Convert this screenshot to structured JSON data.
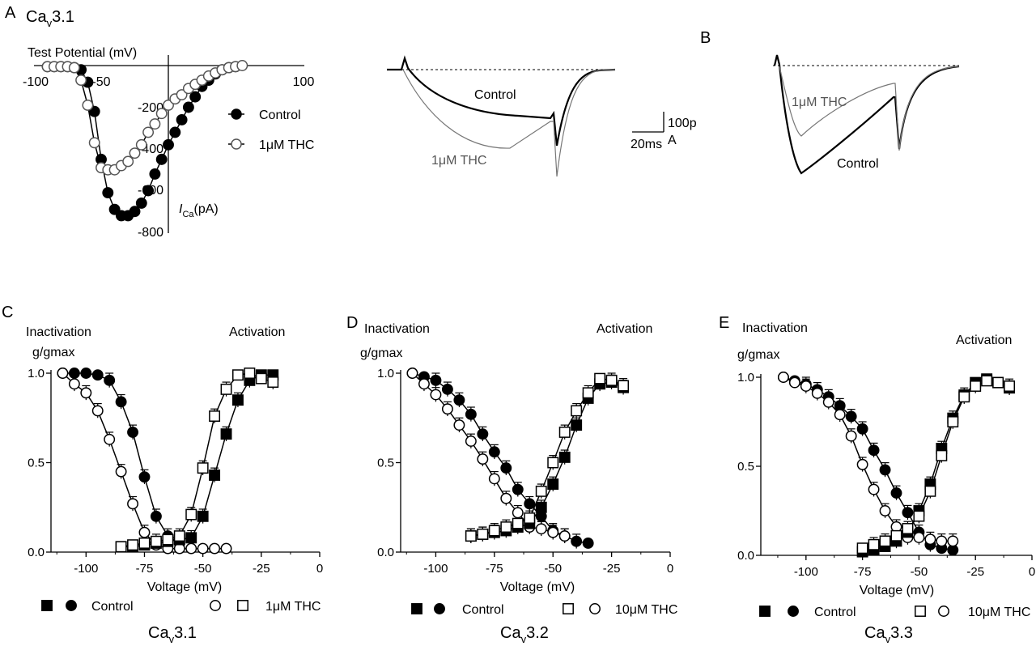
{
  "panels": {
    "a_letter": "A",
    "b_letter": "B",
    "c_letter": "C",
    "d_letter": "D",
    "e_letter": "E",
    "a_title_ca": "Ca",
    "a_title_sub": "v",
    "a_title_rest": "3.1"
  },
  "colors": {
    "control": "#000000",
    "thc": "#ffffff",
    "thc_trace": "#777777",
    "axis": "#000000"
  },
  "chart_data": [
    {
      "id": "A-IV",
      "type": "scatter",
      "xlabel": "Test Potential (mV)",
      "ylabel_italic": "I",
      "ylabel_sub": "Ca",
      "ylabel_rest": "(pA)",
      "x_ticks": [
        "-100",
        "-50",
        "100"
      ],
      "y_ticks": [
        "-200",
        "-400",
        "-600",
        "-800"
      ],
      "xlim": [
        -100,
        100
      ],
      "ylim": [
        -800,
        0
      ],
      "series": [
        {
          "name": "Control",
          "marker": "filled-circle",
          "x": [
            -90,
            -85,
            -80,
            -75,
            -70,
            -65,
            -60,
            -55,
            -50,
            -45,
            -40,
            -35,
            -30,
            -25,
            -20,
            -15,
            -10,
            -5,
            0,
            5,
            10,
            15,
            20,
            25,
            30,
            35,
            40,
            45,
            50
          ],
          "y": [
            -5,
            -5,
            -5,
            -5,
            -10,
            -20,
            -80,
            -220,
            -450,
            -610,
            -690,
            -720,
            -720,
            -700,
            -660,
            -600,
            -520,
            -450,
            -380,
            -320,
            -260,
            -200,
            -150,
            -100,
            -70,
            -40,
            -20,
            -10,
            -5
          ]
        },
        {
          "name": "1μM THC",
          "marker": "open-circle",
          "x": [
            -90,
            -85,
            -80,
            -75,
            -70,
            -65,
            -60,
            -55,
            -50,
            -45,
            -40,
            -35,
            -30,
            -25,
            -20,
            -15,
            -10,
            -5,
            0,
            5,
            10,
            15,
            20,
            25,
            30,
            35,
            40,
            45,
            50,
            55
          ],
          "y": [
            -5,
            -5,
            -5,
            -5,
            -10,
            -70,
            -190,
            -370,
            -490,
            -500,
            -500,
            -480,
            -460,
            -420,
            -380,
            -320,
            -280,
            -230,
            -190,
            -160,
            -140,
            -110,
            -90,
            -70,
            -50,
            -35,
            -20,
            -10,
            -5,
            0
          ]
        }
      ]
    },
    {
      "id": "C",
      "type": "scatter",
      "caption_ca": "Ca",
      "caption_sub": "v",
      "caption_rest": "3.1",
      "label_left": "Inactivation",
      "label_right": "Activation",
      "ylabel": "g/gmax",
      "xlabel": "Voltage (mV)",
      "x_ticks": [
        "-100",
        "-75",
        "-50",
        "-25",
        "0"
      ],
      "y_ticks": [
        "0.0",
        "0.5",
        "1.0"
      ],
      "xlim": [
        -115,
        0
      ],
      "ylim": [
        0,
        1
      ],
      "legend_control": "Control",
      "legend_thc": "1μM THC",
      "series": [
        {
          "name": "Control",
          "marker": "filled-circle",
          "x": [
            -110,
            -105,
            -100,
            -95,
            -90,
            -85,
            -80,
            -75,
            -70,
            -65,
            -60
          ],
          "y": [
            1.0,
            1.0,
            1.0,
            0.99,
            0.96,
            0.84,
            0.67,
            0.42,
            0.2,
            0.09,
            0.05
          ]
        },
        {
          "name": "1μM THC",
          "marker": "open-circle",
          "x": [
            -110,
            -105,
            -100,
            -95,
            -90,
            -85,
            -80,
            -75,
            -70,
            -65,
            -60,
            -55,
            -50,
            -45,
            -40
          ],
          "y": [
            1.0,
            0.94,
            0.89,
            0.79,
            0.63,
            0.45,
            0.27,
            0.11,
            0.04,
            0.02,
            0.02,
            0.02,
            0.02,
            0.02,
            0.02
          ]
        },
        {
          "name": "Control",
          "marker": "filled-square",
          "x": [
            -85,
            -80,
            -75,
            -70,
            -65,
            -60,
            -55,
            -50,
            -45,
            -40,
            -35,
            -30,
            -25,
            -20
          ],
          "y": [
            0.03,
            0.03,
            0.04,
            0.05,
            0.06,
            0.07,
            0.08,
            0.2,
            0.43,
            0.66,
            0.85,
            0.96,
            0.99,
            0.99
          ]
        },
        {
          "name": "1μM THC",
          "marker": "open-square",
          "x": [
            -85,
            -80,
            -75,
            -70,
            -65,
            -60,
            -55,
            -50,
            -45,
            -40,
            -35,
            -30,
            -25,
            -20
          ],
          "y": [
            0.03,
            0.04,
            0.05,
            0.06,
            0.07,
            0.09,
            0.21,
            0.47,
            0.76,
            0.91,
            0.99,
            1.0,
            0.97,
            0.95
          ]
        }
      ]
    },
    {
      "id": "D",
      "type": "scatter",
      "caption_ca": "Ca",
      "caption_sub": "v",
      "caption_rest": "3.2",
      "label_left": "Inactivation",
      "label_right": "Activation",
      "ylabel": "g/gmax",
      "xlabel": "Voltage (mV)",
      "x_ticks": [
        "-100",
        "-75",
        "-50",
        "-25",
        "0"
      ],
      "y_ticks": [
        "0.0",
        "0.5",
        "1.0"
      ],
      "xlim": [
        -115,
        0
      ],
      "ylim": [
        0,
        1
      ],
      "legend_control": "Control",
      "legend_thc": "10μM THC",
      "series": [
        {
          "name": "Control",
          "marker": "filled-circle",
          "x": [
            -110,
            -105,
            -100,
            -95,
            -90,
            -85,
            -80,
            -75,
            -70,
            -65,
            -60,
            -55,
            -50,
            -45,
            -40,
            -35
          ],
          "y": [
            1.0,
            0.98,
            0.96,
            0.91,
            0.85,
            0.77,
            0.66,
            0.56,
            0.47,
            0.35,
            0.27,
            0.2,
            0.12,
            0.09,
            0.06,
            0.05
          ]
        },
        {
          "name": "10μM THC",
          "marker": "open-circle",
          "x": [
            -110,
            -105,
            -100,
            -95,
            -90,
            -85,
            -80,
            -75,
            -70,
            -65,
            -60,
            -55,
            -50,
            -45
          ],
          "y": [
            1.0,
            0.94,
            0.88,
            0.8,
            0.71,
            0.62,
            0.52,
            0.41,
            0.3,
            0.22,
            0.14,
            0.13,
            0.11,
            0.09
          ]
        },
        {
          "name": "Control",
          "marker": "filled-square",
          "x": [
            -85,
            -80,
            -75,
            -70,
            -65,
            -60,
            -55,
            -50,
            -45,
            -40,
            -35,
            -30,
            -25,
            -20
          ],
          "y": [
            0.09,
            0.1,
            0.11,
            0.12,
            0.14,
            0.16,
            0.25,
            0.38,
            0.53,
            0.71,
            0.86,
            0.94,
            0.95,
            0.92
          ]
        },
        {
          "name": "10μM THC",
          "marker": "open-square",
          "x": [
            -85,
            -80,
            -75,
            -70,
            -65,
            -60,
            -55,
            -50,
            -45,
            -40,
            -35,
            -30,
            -25,
            -20
          ],
          "y": [
            0.09,
            0.1,
            0.12,
            0.14,
            0.16,
            0.19,
            0.34,
            0.5,
            0.67,
            0.79,
            0.89,
            0.97,
            0.96,
            0.93
          ]
        }
      ]
    },
    {
      "id": "E",
      "type": "scatter",
      "caption_ca": "Ca",
      "caption_sub": "v",
      "caption_rest": "3.3",
      "label_left": "Inactivation",
      "label_right": "Activation",
      "ylabel": "g/gmax",
      "xlabel": "Voltage (mV)",
      "x_ticks": [
        "-100",
        "-75",
        "-50",
        "-25",
        "0"
      ],
      "y_ticks": [
        "0.0",
        "0.5",
        "1.0"
      ],
      "xlim": [
        -120,
        0
      ],
      "ylim": [
        0,
        1
      ],
      "legend_control": "Control",
      "legend_thc": "10μM THC",
      "series": [
        {
          "name": "Control",
          "marker": "filled-circle",
          "x": [
            -110,
            -105,
            -100,
            -95,
            -90,
            -85,
            -80,
            -75,
            -70,
            -65,
            -60,
            -55,
            -50,
            -45,
            -40,
            -35
          ],
          "y": [
            1.0,
            0.98,
            0.96,
            0.93,
            0.89,
            0.84,
            0.78,
            0.71,
            0.59,
            0.48,
            0.35,
            0.24,
            0.13,
            0.06,
            0.04,
            0.03
          ]
        },
        {
          "name": "10μM THC",
          "marker": "open-circle",
          "x": [
            -110,
            -105,
            -100,
            -95,
            -90,
            -85,
            -80,
            -75,
            -70,
            -65,
            -60,
            -55,
            -50,
            -45,
            -40,
            -35
          ],
          "y": [
            1.0,
            0.97,
            0.95,
            0.91,
            0.86,
            0.79,
            0.67,
            0.51,
            0.37,
            0.25,
            0.16,
            0.1,
            0.1,
            0.09,
            0.08,
            0.08
          ]
        },
        {
          "name": "Control",
          "marker": "filled-square",
          "x": [
            -75,
            -70,
            -65,
            -60,
            -55,
            -50,
            -45,
            -40,
            -35,
            -30,
            -25,
            -20,
            -15,
            -10
          ],
          "y": [
            0.02,
            0.03,
            0.05,
            0.08,
            0.13,
            0.25,
            0.4,
            0.6,
            0.77,
            0.9,
            0.97,
            0.99,
            0.97,
            0.94
          ]
        },
        {
          "name": "10μM THC",
          "marker": "open-square",
          "x": [
            -75,
            -70,
            -65,
            -60,
            -55,
            -50,
            -45,
            -40,
            -35,
            -30,
            -25,
            -20,
            -15,
            -10
          ],
          "y": [
            0.04,
            0.06,
            0.08,
            0.11,
            0.15,
            0.22,
            0.36,
            0.56,
            0.75,
            0.89,
            0.95,
            0.98,
            0.97,
            0.95
          ]
        }
      ]
    }
  ],
  "traces": {
    "a_control_label": "Control",
    "a_thc_label": "1μM THC",
    "scale_time": "20ms",
    "scale_amp_1": "100p",
    "scale_amp_2": "A",
    "b_control_label": "Control",
    "b_thc_label": "1μM THC"
  }
}
